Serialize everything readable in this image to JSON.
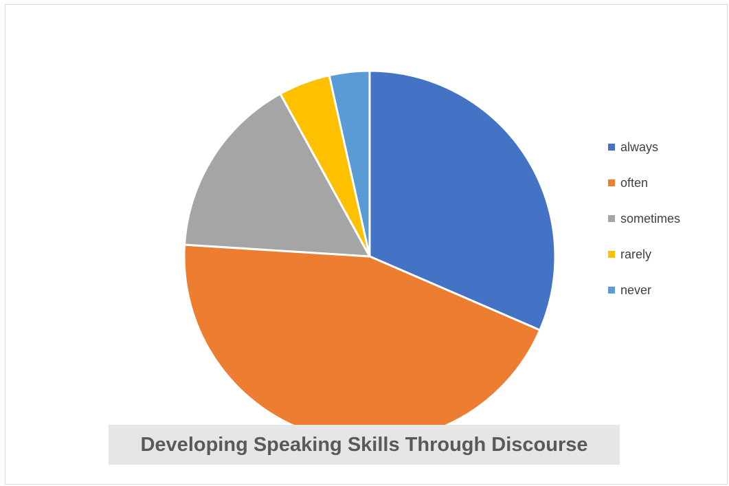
{
  "chart_data": {
    "type": "pie",
    "title": "Developing Speaking Skills Through Discourse",
    "categories": [
      "always",
      "often",
      "sometimes",
      "rarely",
      "never"
    ],
    "values": [
      31.5,
      44.5,
      16.0,
      4.5,
      3.5
    ],
    "colors": [
      "#4472c4",
      "#ed7d31",
      "#a5a5a5",
      "#ffc000",
      "#5b9bd5"
    ],
    "legend_position": "right"
  }
}
